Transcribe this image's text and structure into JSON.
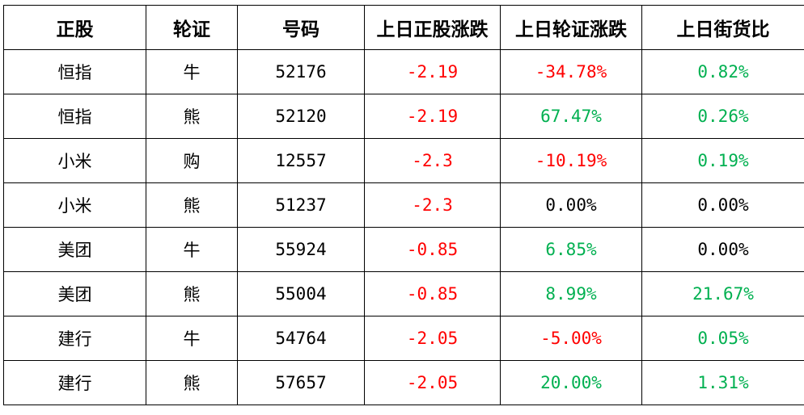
{
  "colors": {
    "negative": "#ff0000",
    "positive": "#00b050",
    "neutral": "#000000"
  },
  "table": {
    "headers": [
      "正股",
      "轮证",
      "号码",
      "上日正股涨跌",
      "上日轮证涨跌",
      "上日街货比"
    ],
    "rows": [
      {
        "stock": "恒指",
        "type": "牛",
        "code": "52176",
        "stock_change": "-2.19",
        "stock_change_tone": "negative",
        "warrant_change": "-34.78%",
        "warrant_change_tone": "negative",
        "outstanding": "0.82%",
        "outstanding_tone": "positive"
      },
      {
        "stock": "恒指",
        "type": "熊",
        "code": "52120",
        "stock_change": "-2.19",
        "stock_change_tone": "negative",
        "warrant_change": "67.47%",
        "warrant_change_tone": "positive",
        "outstanding": "0.26%",
        "outstanding_tone": "positive"
      },
      {
        "stock": "小米",
        "type": "购",
        "code": "12557",
        "stock_change": "-2.3",
        "stock_change_tone": "negative",
        "warrant_change": "-10.19%",
        "warrant_change_tone": "negative",
        "outstanding": "0.19%",
        "outstanding_tone": "positive"
      },
      {
        "stock": "小米",
        "type": "熊",
        "code": "51237",
        "stock_change": "-2.3",
        "stock_change_tone": "negative",
        "warrant_change": "0.00%",
        "warrant_change_tone": "neutral",
        "outstanding": "0.00%",
        "outstanding_tone": "neutral"
      },
      {
        "stock": "美团",
        "type": "牛",
        "code": "55924",
        "stock_change": "-0.85",
        "stock_change_tone": "negative",
        "warrant_change": "6.85%",
        "warrant_change_tone": "positive",
        "outstanding": "0.00%",
        "outstanding_tone": "neutral"
      },
      {
        "stock": "美团",
        "type": "熊",
        "code": "55004",
        "stock_change": "-0.85",
        "stock_change_tone": "negative",
        "warrant_change": "8.99%",
        "warrant_change_tone": "positive",
        "outstanding": "21.67%",
        "outstanding_tone": "positive"
      },
      {
        "stock": "建行",
        "type": "牛",
        "code": "54764",
        "stock_change": "-2.05",
        "stock_change_tone": "negative",
        "warrant_change": "-5.00%",
        "warrant_change_tone": "negative",
        "outstanding": "0.05%",
        "outstanding_tone": "positive"
      },
      {
        "stock": "建行",
        "type": "熊",
        "code": "57657",
        "stock_change": "-2.05",
        "stock_change_tone": "negative",
        "warrant_change": "20.00%",
        "warrant_change_tone": "positive",
        "outstanding": "1.31%",
        "outstanding_tone": "positive"
      }
    ]
  }
}
